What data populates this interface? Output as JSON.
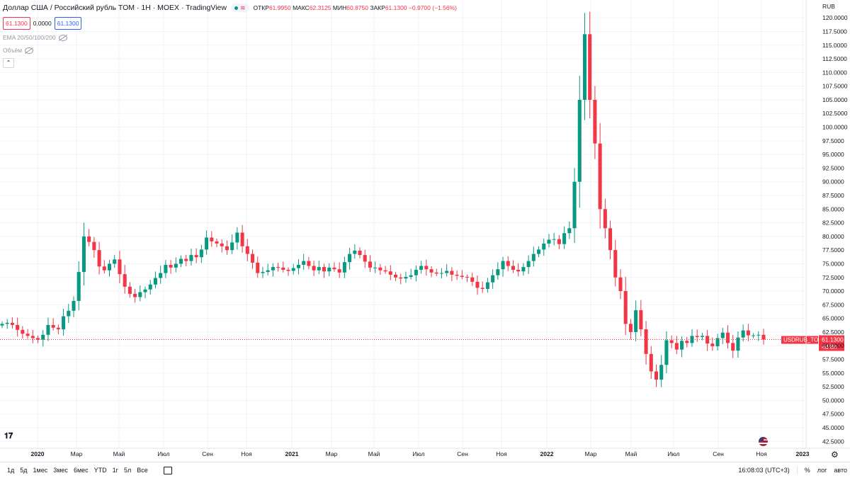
{
  "header": {
    "symbol_title": "Доллар США / Российский рубль TOM · 1Н · MOEX · TradingView",
    "ohlc": {
      "o_label": "ОТКР",
      "o": "61.9950",
      "h_label": "МАКС",
      "h": "62.3125",
      "l_label": "МИН",
      "l": "60.8750",
      "c_label": "ЗАКР",
      "c": "61.1300",
      "change": "−0.9700 (−1.56%)"
    },
    "bid": "61.1300",
    "spread": "0.0000",
    "ask": "61.1300",
    "indicators": [
      "EMA 20/50/100/200",
      "Объём"
    ]
  },
  "currency": "RUB",
  "last_price_label": {
    "symbol": "USDRUB_TOM",
    "price": "61.1300",
    "countdown": "4d 8h",
    "color": "#f23645"
  },
  "colors": {
    "up": "#089981",
    "down": "#f23645",
    "grid": "#f0f3fa",
    "axis_text": "#131722"
  },
  "time_axis": [
    "2020",
    "Мар",
    "Май",
    "Июл",
    "Сен",
    "Ноя",
    "2021",
    "Мар",
    "Май",
    "Июл",
    "Сен",
    "Ноя",
    "2022",
    "Мар",
    "Май",
    "Июл",
    "Сен",
    "Ноя",
    "2023"
  ],
  "bottom_bar": {
    "ranges": [
      "1д",
      "5д",
      "1мес",
      "3мес",
      "6мес",
      "YTD",
      "1г",
      "5л",
      "Все"
    ],
    "time": "16:08:03 (UTC+3)",
    "percent": "%",
    "log": "лог",
    "auto": "авто"
  },
  "chart_data": {
    "type": "candlestick",
    "title": "Доллар США / Российский рубль TOM",
    "interval": "1W",
    "y_ticks": [
      42.5,
      45,
      47.5,
      50,
      52.5,
      55,
      57.5,
      60,
      62.5,
      65,
      67.5,
      70,
      72.5,
      75,
      77.5,
      80,
      82.5,
      85,
      87.5,
      90,
      92.5,
      95,
      97.5,
      100,
      102.5,
      105,
      107.5,
      110,
      112.5,
      115,
      117.5,
      120
    ],
    "y_tick_format": "4 decimals",
    "ylim": [
      41.5,
      122.0
    ],
    "last_close": 61.13,
    "closes": [
      64.0,
      64.2,
      63.8,
      62.9,
      62.2,
      61.8,
      61.4,
      61.1,
      62.0,
      63.8,
      63.3,
      63.0,
      65.4,
      66.4,
      68.2,
      73.5,
      80.0,
      79.0,
      77.5,
      74.5,
      73.8,
      75.0,
      75.8,
      73.1,
      70.8,
      69.5,
      68.9,
      69.8,
      70.3,
      71.2,
      72.4,
      73.3,
      74.8,
      74.3,
      75.0,
      75.9,
      75.5,
      76.6,
      76.2,
      77.6,
      79.8,
      79.1,
      78.7,
      78.2,
      77.5,
      78.9,
      80.7,
      78.2,
      76.8,
      75.2,
      73.3,
      73.5,
      73.8,
      74.4,
      74.3,
      73.9,
      73.7,
      74.2,
      74.8,
      75.5,
      74.6,
      73.8,
      74.4,
      73.6,
      74.3,
      74.0,
      73.4,
      75.3,
      76.8,
      77.4,
      76.6,
      75.4,
      74.3,
      74.3,
      73.8,
      73.6,
      73.0,
      72.5,
      72.3,
      72.6,
      72.9,
      73.9,
      74.6,
      74.0,
      73.4,
      73.2,
      73.3,
      73.7,
      73.0,
      72.8,
      72.6,
      72.5,
      71.7,
      70.6,
      70.4,
      71.6,
      72.9,
      74.0,
      75.5,
      74.6,
      73.9,
      73.6,
      74.4,
      75.5,
      76.8,
      77.6,
      78.7,
      79.4,
      79.5,
      78.6,
      80.6,
      81.5,
      90.0,
      105.0,
      117.0,
      105.0,
      97.0,
      85.0,
      81.5,
      77.5,
      72.5,
      70.0,
      64.0,
      62.5,
      66.5,
      63.0,
      58.5,
      55.3,
      53.8,
      56.5,
      61.0,
      60.5,
      59.3,
      60.9,
      60.5,
      61.8,
      61.6,
      61.8,
      60.4,
      59.9,
      61.4,
      62.4,
      60.5,
      59.1,
      61.5,
      62.8,
      61.9,
      61.9,
      62.0,
      61.13
    ]
  }
}
